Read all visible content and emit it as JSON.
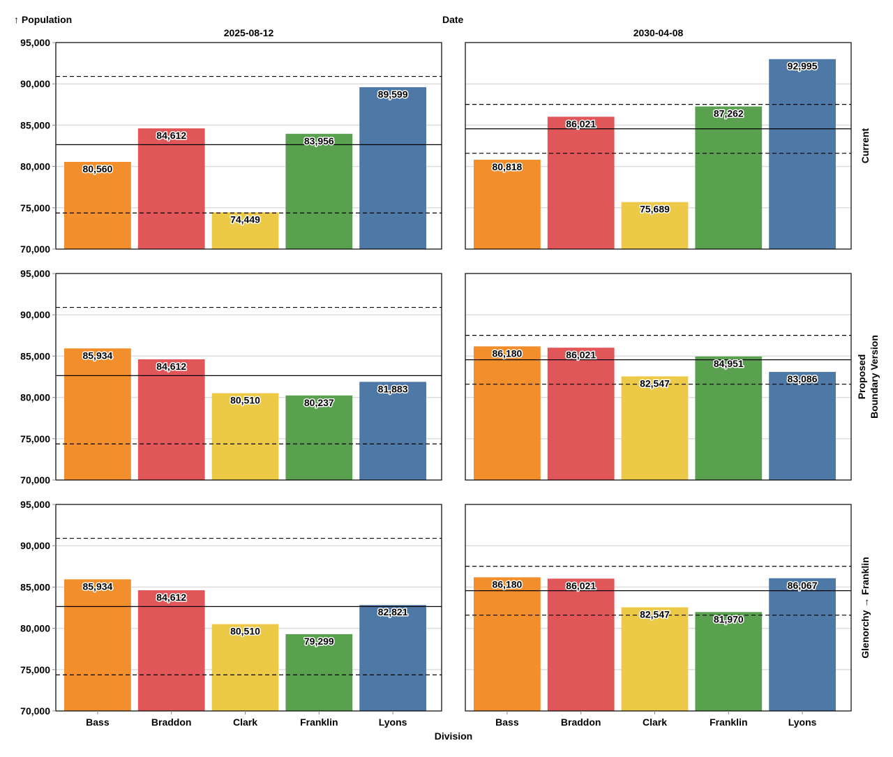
{
  "chart_data": {
    "type": "bar",
    "layout": "facet-grid",
    "y_axis_title": "↑ Population",
    "column_header_title": "Date",
    "x_axis_title": "Division",
    "row_header_title": "Boundary Version",
    "ylim": [
      70000,
      95000
    ],
    "y_ticks": [
      70000,
      75000,
      80000,
      85000,
      90000,
      95000
    ],
    "y_tick_labels": [
      "70,000",
      "75,000",
      "80,000",
      "85,000",
      "90,000",
      "95,000"
    ],
    "grid": true,
    "categories": [
      "Bass",
      "Braddon",
      "Clark",
      "Franklin",
      "Lyons"
    ],
    "colors": {
      "Bass": "#f28e2b",
      "Braddon": "#e15759",
      "Clark": "#edc948",
      "Franklin": "#59a14f",
      "Lyons": "#4e79a7"
    },
    "columns": [
      "2025-08-12",
      "2030-04-08"
    ],
    "rows": [
      "Current",
      "Proposed",
      "Glenorchy → Franklin"
    ],
    "reference_lines": {
      "2025-08-12": {
        "mean": 82635,
        "upper": 90899,
        "lower": 74372,
        "band": "±10%"
      },
      "2030-04-08": {
        "mean": 84557,
        "upper": 87516,
        "lower": 81598,
        "band": "±3.5%"
      }
    },
    "panels": [
      {
        "row": "Current",
        "column": "2025-08-12",
        "values": [
          80560,
          84612,
          74449,
          83956,
          89599
        ],
        "labels": [
          "80,560",
          "84,612",
          "74,449",
          "83,956",
          "89,599"
        ]
      },
      {
        "row": "Current",
        "column": "2030-04-08",
        "values": [
          80818,
          86021,
          75689,
          87262,
          92995
        ],
        "labels": [
          "80,818",
          "86,021",
          "75,689",
          "87,262",
          "92,995"
        ]
      },
      {
        "row": "Proposed",
        "column": "2025-08-12",
        "values": [
          85934,
          84612,
          80510,
          80237,
          81883
        ],
        "labels": [
          "85,934",
          "84,612",
          "80,510",
          "80,237",
          "81,883"
        ]
      },
      {
        "row": "Proposed",
        "column": "2030-04-08",
        "values": [
          86180,
          86021,
          82547,
          84951,
          83086
        ],
        "labels": [
          "86,180",
          "86,021",
          "82,547",
          "84,951",
          "83,086"
        ]
      },
      {
        "row": "Glenorchy → Franklin",
        "column": "2025-08-12",
        "values": [
          85934,
          84612,
          80510,
          79299,
          82821
        ],
        "labels": [
          "85,934",
          "84,612",
          "80,510",
          "79,299",
          "82,821"
        ]
      },
      {
        "row": "Glenorchy → Franklin",
        "column": "2030-04-08",
        "values": [
          86180,
          86021,
          82547,
          81970,
          86067
        ],
        "labels": [
          "86,180",
          "86,021",
          "82,547",
          "81,970",
          "86,067"
        ]
      }
    ]
  }
}
